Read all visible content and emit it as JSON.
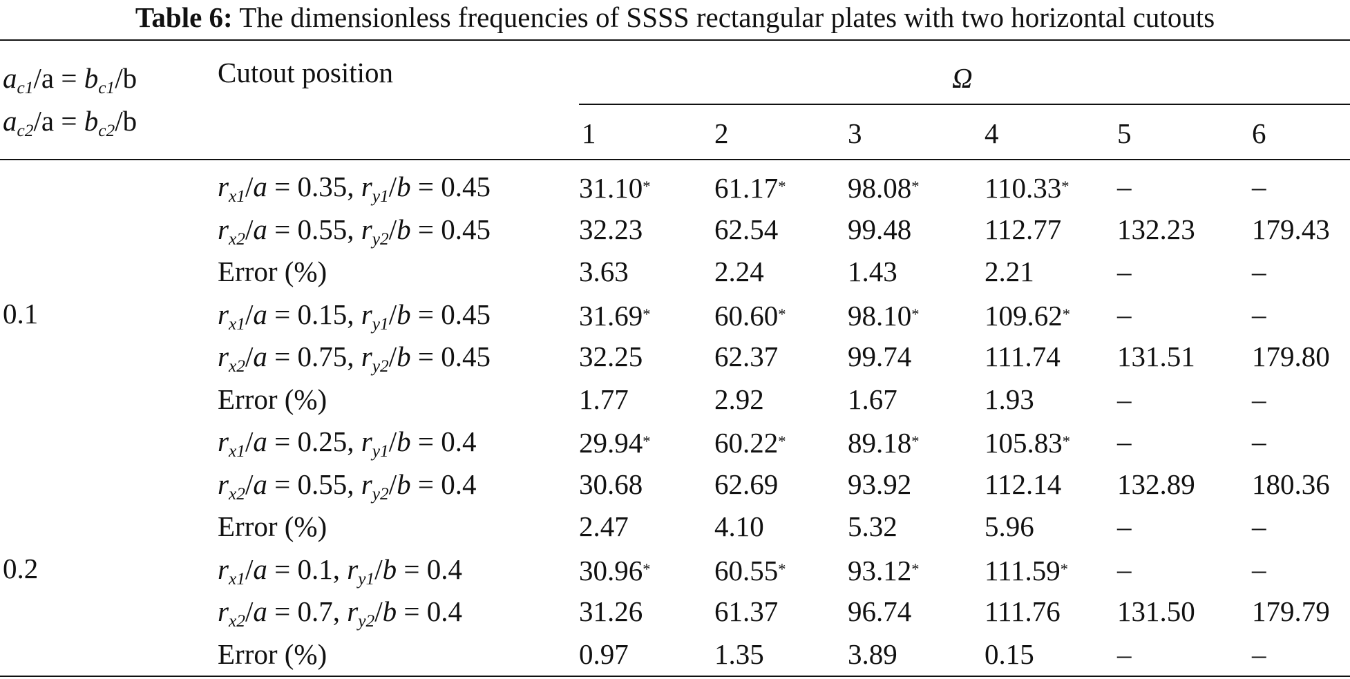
{
  "caption": {
    "label": "Table 6:",
    "text": "The dimensionless frequencies of SSSS rectangular plates with two horizontal cutouts"
  },
  "header": {
    "size_col": {
      "line1": {
        "a": "a",
        "sub1": "c1",
        "slash": "/a = ",
        "b": "b",
        "sub2": "c1",
        "end": "/b"
      },
      "line2": {
        "a": "a",
        "sub1": "c2",
        "slash": "/a = ",
        "b": "b",
        "sub2": "c2",
        "end": "/b"
      }
    },
    "position_col": "Cutout position",
    "group": "Ω",
    "modes": [
      "1",
      "2",
      "3",
      "4",
      "5",
      "6"
    ]
  },
  "size_labels": [
    "0.1",
    "0.2"
  ],
  "rows": [
    {
      "pos": {
        "i": "1",
        "rx": "0.35",
        "ry": "0.45"
      },
      "vals": [
        "31.10",
        "61.17",
        "98.08",
        "110.33",
        "–",
        "–"
      ],
      "star": true
    },
    {
      "pos": {
        "i": "2",
        "rx": "0.55",
        "ry": "0.45"
      },
      "vals": [
        "32.23",
        "62.54",
        "99.48",
        "112.77",
        "132.23",
        "179.43"
      ],
      "star": false
    },
    {
      "pos": {
        "label": "Error (%)"
      },
      "vals": [
        "3.63",
        "2.24",
        "1.43",
        "2.21",
        "–",
        "–"
      ],
      "star": false
    },
    {
      "pos": {
        "i": "1",
        "rx": "0.15",
        "ry": "0.45"
      },
      "vals": [
        "31.69",
        "60.60",
        "98.10",
        "109.62",
        "–",
        "–"
      ],
      "star": true
    },
    {
      "pos": {
        "i": "2",
        "rx": "0.75",
        "ry": "0.45"
      },
      "vals": [
        "32.25",
        "62.37",
        "99.74",
        "111.74",
        "131.51",
        "179.80"
      ],
      "star": false
    },
    {
      "pos": {
        "label": "Error (%)"
      },
      "vals": [
        "1.77",
        "2.92",
        "1.67",
        "1.93",
        "–",
        "–"
      ],
      "star": false
    },
    {
      "pos": {
        "i": "1",
        "rx": "0.25",
        "ry": "0.4"
      },
      "vals": [
        "29.94",
        "60.22",
        "89.18",
        "105.83",
        "–",
        "–"
      ],
      "star": true
    },
    {
      "pos": {
        "i": "2",
        "rx": "0.55",
        "ry": "0.4"
      },
      "vals": [
        "30.68",
        "62.69",
        "93.92",
        "112.14",
        "132.89",
        "180.36"
      ],
      "star": false
    },
    {
      "pos": {
        "label": "Error (%)"
      },
      "vals": [
        "2.47",
        "4.10",
        "5.32",
        "5.96",
        "–",
        "–"
      ],
      "star": false
    },
    {
      "pos": {
        "i": "1",
        "rx": "0.1",
        "ry": "0.4"
      },
      "vals": [
        "30.96",
        "60.55",
        "93.12",
        "111.59",
        "–",
        "–"
      ],
      "star": true
    },
    {
      "pos": {
        "i": "2",
        "rx": "0.7",
        "ry": "0.4"
      },
      "vals": [
        "31.26",
        "61.37",
        "96.74",
        "111.76",
        "131.50",
        "179.79"
      ],
      "star": false
    },
    {
      "pos": {
        "label": "Error (%)"
      },
      "vals": [
        "0.97",
        "1.35",
        "3.89",
        "0.15",
        "–",
        "–"
      ],
      "star": false
    }
  ],
  "star_mark": "*"
}
